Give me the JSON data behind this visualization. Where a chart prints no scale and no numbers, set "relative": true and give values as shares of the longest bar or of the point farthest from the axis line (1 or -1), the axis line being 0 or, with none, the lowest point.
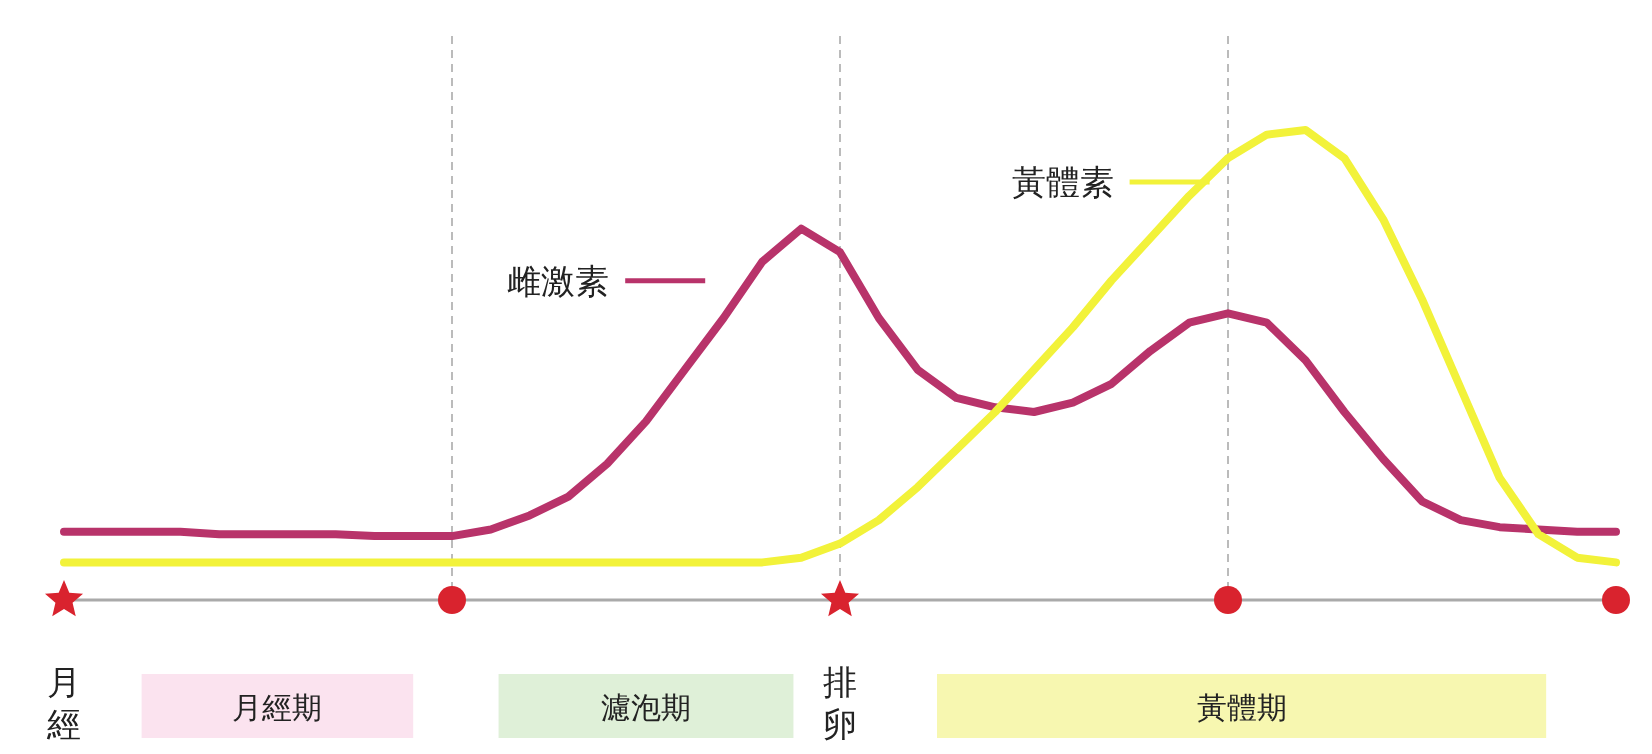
{
  "chart_data": {
    "type": "line",
    "relative": true,
    "categories": [
      "月經",
      null,
      null,
      null,
      null,
      null,
      null,
      null,
      null,
      null,
      null,
      null,
      null,
      null,
      null,
      null,
      null,
      null,
      null,
      null,
      "排卵",
      null,
      null,
      null,
      null,
      null,
      null,
      null,
      null,
      null,
      null,
      null,
      null,
      null,
      null,
      null,
      null,
      null,
      null,
      null,
      null
    ],
    "series": [
      {
        "name": "雌激素",
        "color": "#b8336a",
        "values": [
          0.145,
          0.145,
          0.145,
          0.145,
          0.14,
          0.14,
          0.14,
          0.14,
          0.136,
          0.136,
          0.136,
          0.15,
          0.18,
          0.22,
          0.29,
          0.38,
          0.49,
          0.6,
          0.72,
          0.79,
          0.74,
          0.6,
          0.49,
          0.43,
          0.41,
          0.4,
          0.42,
          0.46,
          0.53,
          0.59,
          0.61,
          0.59,
          0.51,
          0.4,
          0.3,
          0.21,
          0.17,
          0.155,
          0.15,
          0.145,
          0.145
        ]
      },
      {
        "name": "黃體素",
        "color": "#f2f23a",
        "values": [
          0.08,
          0.08,
          0.08,
          0.08,
          0.08,
          0.08,
          0.08,
          0.08,
          0.08,
          0.08,
          0.08,
          0.08,
          0.08,
          0.08,
          0.08,
          0.08,
          0.08,
          0.08,
          0.08,
          0.09,
          0.12,
          0.17,
          0.24,
          0.32,
          0.4,
          0.49,
          0.58,
          0.68,
          0.77,
          0.86,
          0.94,
          0.99,
          1.0,
          0.94,
          0.81,
          0.64,
          0.45,
          0.26,
          0.14,
          0.09,
          0.08
        ]
      },
      {
        "type": "scatter",
        "color": "#d9232e",
        "marker": "star",
        "values": [
          0,
          null,
          null,
          null,
          null,
          null,
          null,
          null,
          null,
          null,
          null,
          null,
          null,
          null,
          null,
          null,
          null,
          null,
          null,
          null,
          0,
          null,
          null,
          null,
          null,
          null,
          null,
          null,
          null,
          null,
          null,
          null,
          null,
          null,
          null,
          null,
          null,
          null,
          null,
          null,
          null
        ]
      },
      {
        "type": "scatter",
        "color": "#d9232e",
        "marker": "circle",
        "values": [
          null,
          null,
          null,
          null,
          null,
          null,
          null,
          null,
          null,
          null,
          0,
          null,
          null,
          null,
          null,
          null,
          null,
          null,
          null,
          null,
          null,
          null,
          null,
          null,
          null,
          null,
          null,
          null,
          null,
          null,
          0,
          null,
          null,
          null,
          null,
          null,
          null,
          null,
          null,
          null,
          0
        ]
      }
    ],
    "grid": "x",
    "annotations": [
      "月經期",
      "濾泡期",
      "黃體期"
    ],
    "legend": "top"
  }
}
